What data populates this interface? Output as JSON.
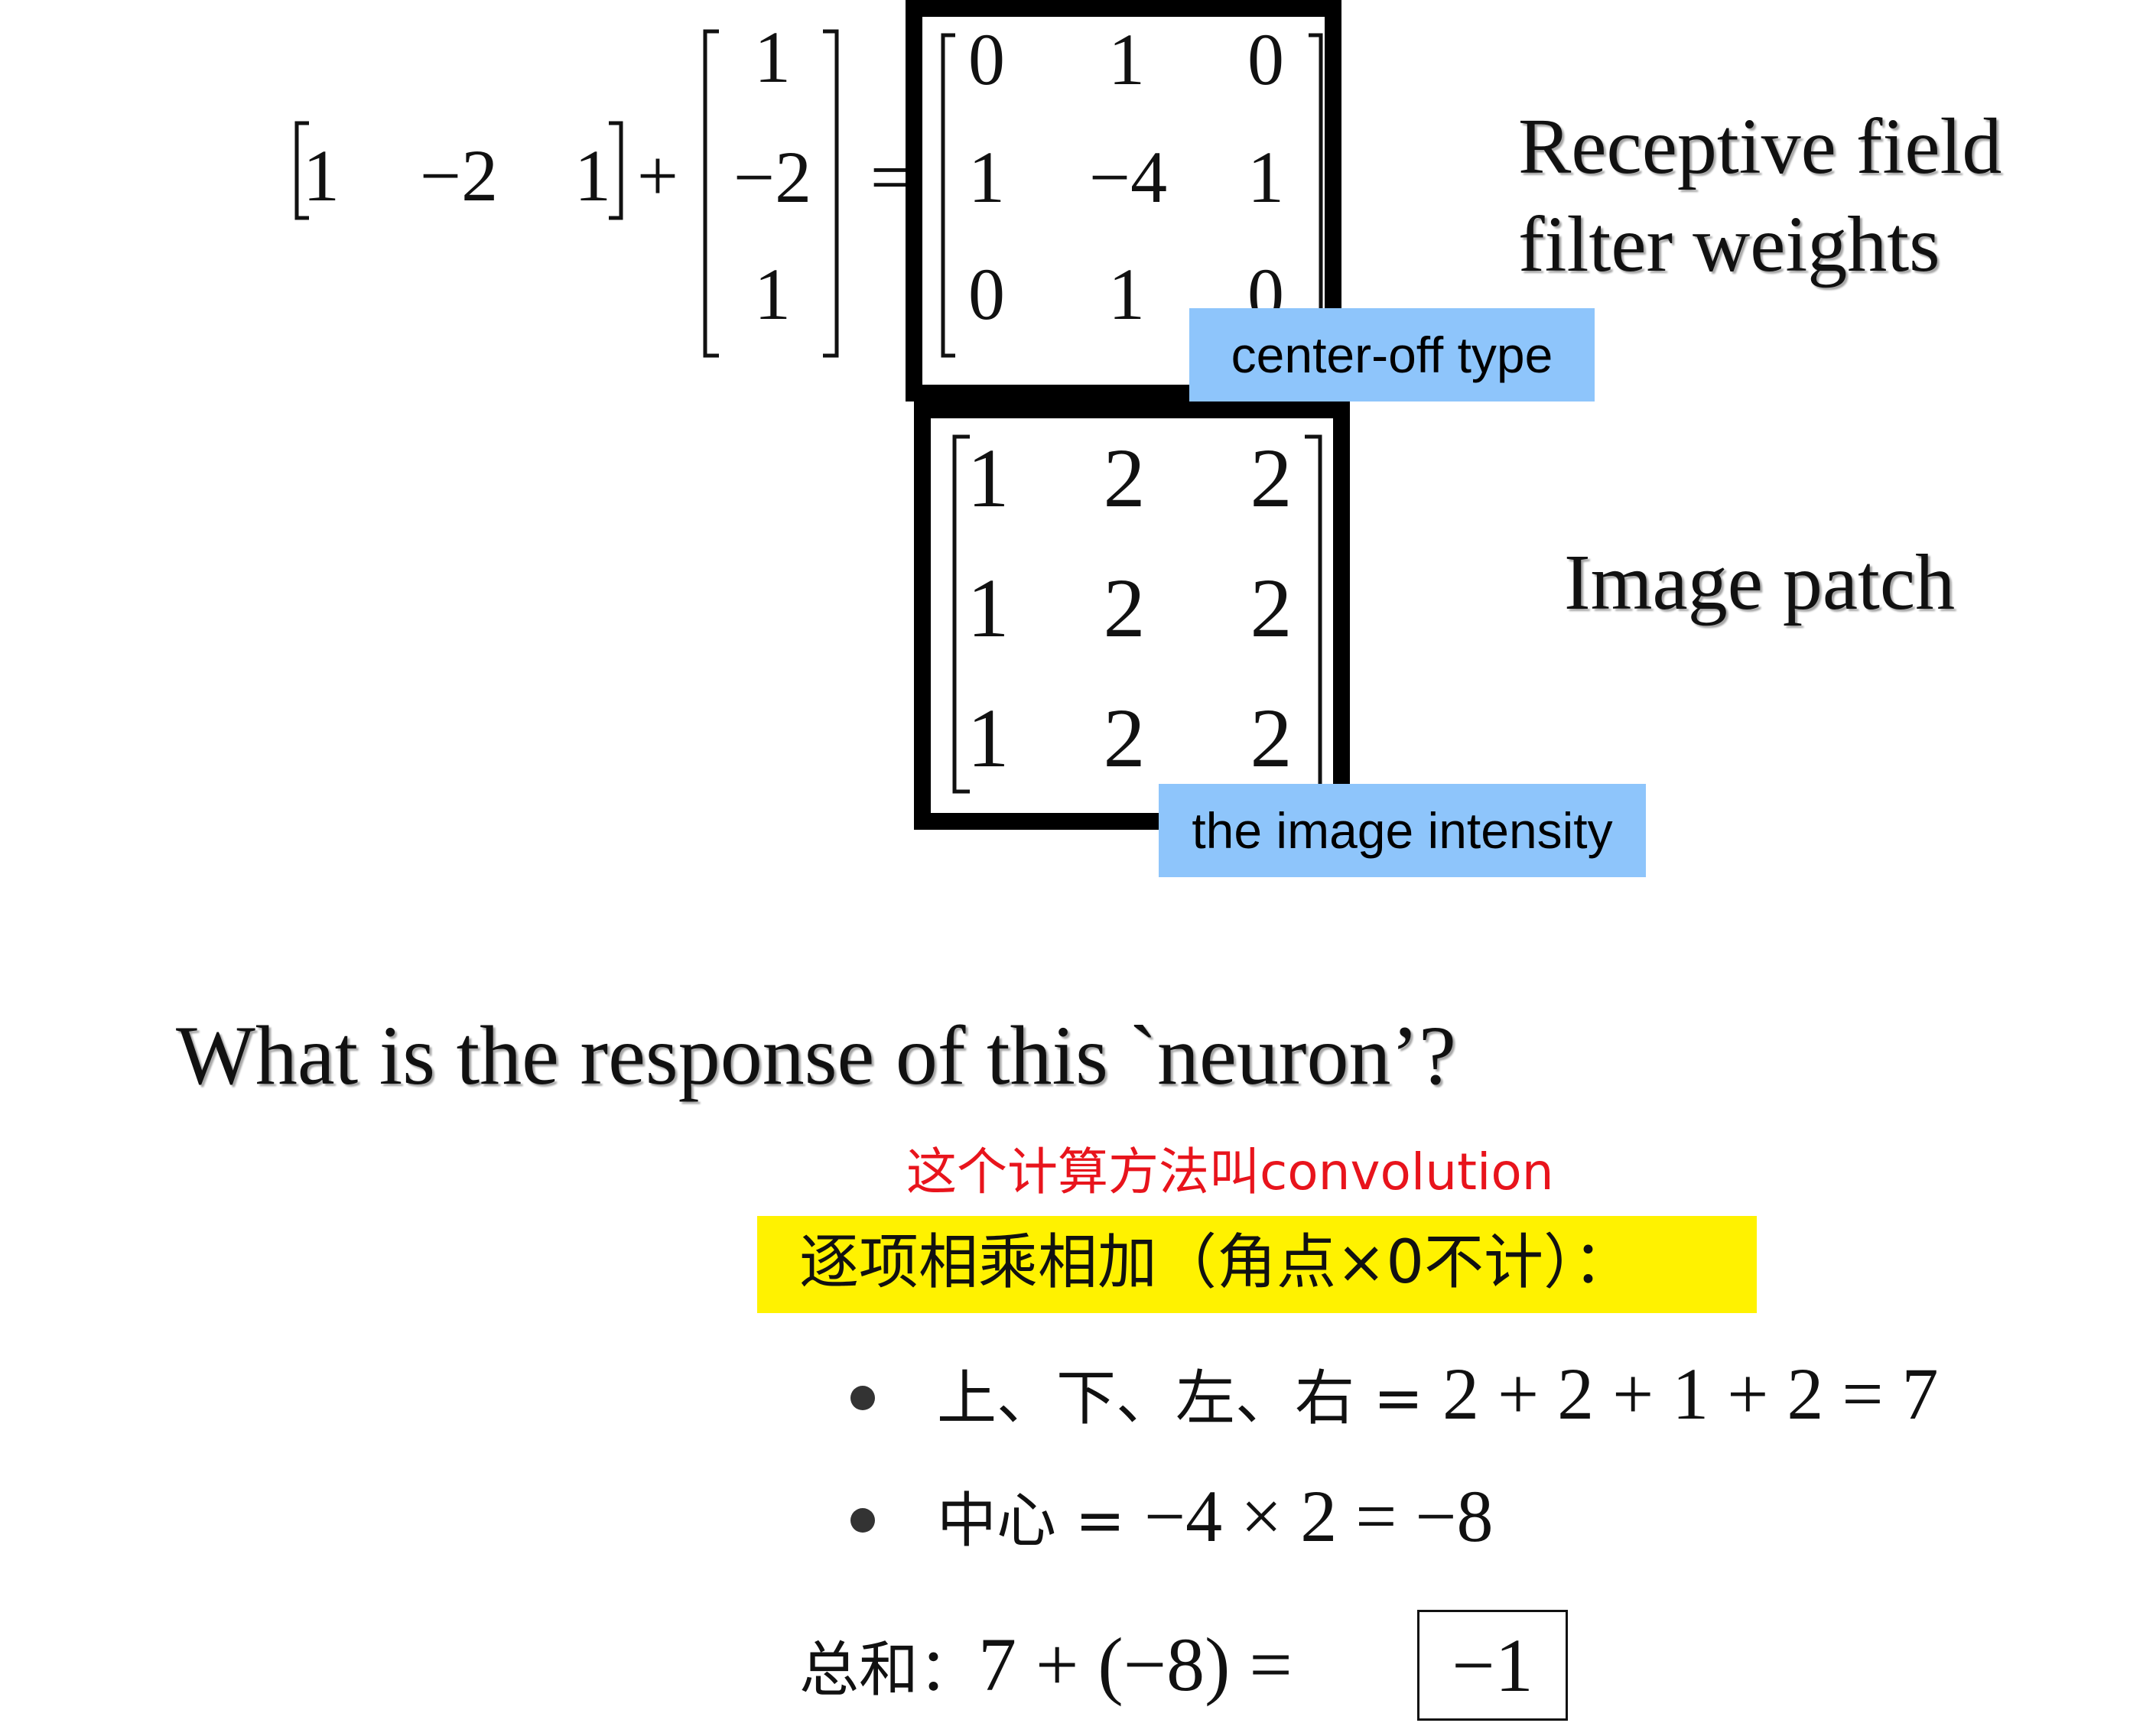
{
  "equation": {
    "row_vector": [
      "1",
      "−2",
      "1"
    ],
    "plus_sign": "+",
    "col_vector": [
      "1",
      "−2",
      "1"
    ],
    "equals_sign": "=",
    "kernel": [
      [
        "0",
        "1",
        "0"
      ],
      [
        "1",
        "−4",
        "1"
      ],
      [
        "0",
        "1",
        "0"
      ]
    ]
  },
  "kernel_caption": {
    "line1": "Receptive field",
    "line2": "filter weights"
  },
  "kernel_tag": "center-off type",
  "patch": [
    [
      "1",
      "2",
      "2"
    ],
    [
      "1",
      "2",
      "2"
    ],
    [
      "1",
      "2",
      "2"
    ]
  ],
  "patch_caption": "Image patch",
  "patch_tag": "the image intensity",
  "question": "What is the response of this `neuron’?",
  "method_note": "这个计算方法叫convolution",
  "highlight": "逐项相乘相加（角点×0不计）：",
  "bullets": [
    {
      "label": "上、下、左、右 = ",
      "math": "2 + 2 + 1 + 2 = 7"
    },
    {
      "label": "中心 = ",
      "math": "−4 × 2 = −8"
    }
  ],
  "sum": {
    "label": "总和：",
    "math": "7 + (−8) = ",
    "result": "−1"
  },
  "colors": {
    "tag_bg": "#8ec5fb",
    "highlight_bg": "#fff200",
    "note_red": "#e8141c"
  }
}
